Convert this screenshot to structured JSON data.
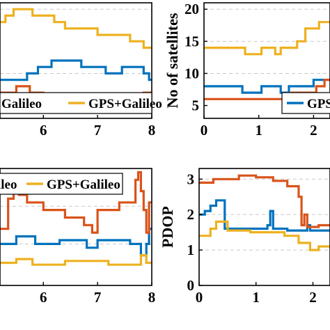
{
  "chart_data": [
    {
      "id": "top-left",
      "type": "line",
      "xlabel": "",
      "ylabel": "",
      "x_ticks": [
        "6",
        "7",
        "8"
      ],
      "legend": [
        {
          "label": "Galileo",
          "color": "#D95319"
        },
        {
          "label": "GPS+Galileo",
          "color": "#EDB120"
        }
      ],
      "series": [
        {
          "name": "GPS",
          "color": "#0072BD",
          "values": [
            [
              5.2,
              9
            ],
            [
              5.7,
              9
            ],
            [
              5.7,
              10
            ],
            [
              5.9,
              10
            ],
            [
              5.9,
              11
            ],
            [
              6.15,
              11
            ],
            [
              6.15,
              12
            ],
            [
              6.7,
              12
            ],
            [
              6.7,
              11
            ],
            [
              7.15,
              11
            ],
            [
              7.15,
              10
            ],
            [
              7.45,
              10
            ],
            [
              7.45,
              11
            ],
            [
              7.85,
              11
            ],
            [
              7.85,
              10
            ],
            [
              7.95,
              10
            ],
            [
              7.95,
              9
            ],
            [
              8,
              9
            ]
          ]
        },
        {
          "name": "Galileo",
          "color": "#D95319",
          "values": [
            [
              5.2,
              7
            ],
            [
              5.5,
              7
            ],
            [
              5.5,
              8
            ],
            [
              5.75,
              8
            ],
            [
              5.75,
              7
            ],
            [
              6.0,
              7
            ],
            [
              6.0,
              6
            ],
            [
              6.7,
              6
            ],
            [
              6.7,
              5
            ],
            [
              7.35,
              5
            ],
            [
              7.35,
              6
            ],
            [
              7.85,
              6
            ],
            [
              7.85,
              7
            ],
            [
              8,
              7
            ]
          ]
        },
        {
          "name": "GPS+Galileo",
          "color": "#EDB120",
          "values": [
            [
              5.2,
              18
            ],
            [
              5.3,
              18
            ],
            [
              5.3,
              19
            ],
            [
              5.45,
              19
            ],
            [
              5.45,
              20
            ],
            [
              5.8,
              20
            ],
            [
              5.8,
              19
            ],
            [
              6.2,
              19
            ],
            [
              6.2,
              18
            ],
            [
              6.4,
              18
            ],
            [
              6.4,
              17
            ],
            [
              7.0,
              17
            ],
            [
              7.0,
              16
            ],
            [
              7.6,
              16
            ],
            [
              7.6,
              15
            ],
            [
              7.85,
              15
            ],
            [
              7.85,
              14
            ],
            [
              8,
              14
            ]
          ]
        }
      ]
    },
    {
      "id": "top-right",
      "type": "line",
      "xlabel": "",
      "ylabel": "No of satellites",
      "x_ticks": [
        "0",
        "1",
        "2"
      ],
      "y_ticks": [
        "5",
        "10",
        "15",
        "20"
      ],
      "ylim": [
        3,
        21
      ],
      "legend": [
        {
          "label": "GPS",
          "color": "#0072BD"
        }
      ],
      "series": [
        {
          "name": "GPS",
          "color": "#0072BD",
          "values": [
            [
              0,
              8
            ],
            [
              0.7,
              8
            ],
            [
              0.7,
              7
            ],
            [
              1.05,
              7
            ],
            [
              1.05,
              8
            ],
            [
              1.4,
              8
            ],
            [
              1.4,
              7
            ],
            [
              1.55,
              7
            ],
            [
              1.55,
              8
            ],
            [
              2.0,
              8
            ],
            [
              2.0,
              9
            ],
            [
              2.3,
              9
            ]
          ]
        },
        {
          "name": "Galileo",
          "color": "#D95319",
          "values": [
            [
              0,
              6
            ],
            [
              1.6,
              6
            ],
            [
              1.6,
              7
            ],
            [
              2.05,
              7
            ],
            [
              2.05,
              8
            ],
            [
              2.2,
              8
            ],
            [
              2.2,
              9
            ],
            [
              2.3,
              9
            ]
          ]
        },
        {
          "name": "GPS+Galileo",
          "color": "#EDB120",
          "values": [
            [
              0,
              14
            ],
            [
              0.75,
              14
            ],
            [
              0.75,
              13
            ],
            [
              1.05,
              13
            ],
            [
              1.05,
              14
            ],
            [
              1.3,
              14
            ],
            [
              1.3,
              13
            ],
            [
              1.4,
              13
            ],
            [
              1.4,
              14
            ],
            [
              1.7,
              14
            ],
            [
              1.7,
              15
            ],
            [
              1.85,
              15
            ],
            [
              1.85,
              17
            ],
            [
              2.1,
              17
            ],
            [
              2.1,
              18
            ],
            [
              2.3,
              18
            ]
          ]
        }
      ]
    },
    {
      "id": "bottom-left",
      "type": "line",
      "xlabel": "",
      "ylabel": "",
      "x_ticks": [
        "6",
        "7",
        "8"
      ],
      "legend": [
        {
          "label": "ileo",
          "color": "#D95319"
        },
        {
          "label": "GPS+Galileo",
          "color": "#EDB120"
        }
      ],
      "series": [
        {
          "name": "GPS",
          "color": "#0072BD",
          "values": [
            [
              5.2,
              1.5
            ],
            [
              5.5,
              1.5
            ],
            [
              5.5,
              1.7
            ],
            [
              5.85,
              1.7
            ],
            [
              5.85,
              1.5
            ],
            [
              6.3,
              1.5
            ],
            [
              6.3,
              1.6
            ],
            [
              6.8,
              1.6
            ],
            [
              6.8,
              1.4
            ],
            [
              7.0,
              1.4
            ],
            [
              7.0,
              1.6
            ],
            [
              7.6,
              1.6
            ],
            [
              7.6,
              1.5
            ],
            [
              7.8,
              1.5
            ],
            [
              7.8,
              1.2
            ],
            [
              7.9,
              1.2
            ],
            [
              7.9,
              1.5
            ],
            [
              7.95,
              1.5
            ],
            [
              7.95,
              1.9
            ],
            [
              8,
              1.9
            ]
          ]
        },
        {
          "name": "Galileo",
          "color": "#D95319",
          "values": [
            [
              5.2,
              1.9
            ],
            [
              5.35,
              1.9
            ],
            [
              5.35,
              2.7
            ],
            [
              5.45,
              2.7
            ],
            [
              5.45,
              3.0
            ],
            [
              5.5,
              3.0
            ],
            [
              5.5,
              3.1
            ],
            [
              5.55,
              3.1
            ],
            [
              5.55,
              2.8
            ],
            [
              5.7,
              2.8
            ],
            [
              5.7,
              2.6
            ],
            [
              6.0,
              2.6
            ],
            [
              6.0,
              2.4
            ],
            [
              6.4,
              2.4
            ],
            [
              6.4,
              2.2
            ],
            [
              6.75,
              2.2
            ],
            [
              6.75,
              2.0
            ],
            [
              6.9,
              2.0
            ],
            [
              6.9,
              1.8
            ],
            [
              7.0,
              1.8
            ],
            [
              7.0,
              2.4
            ],
            [
              7.4,
              2.4
            ],
            [
              7.4,
              2.6
            ],
            [
              7.7,
              2.6
            ],
            [
              7.7,
              3.2
            ],
            [
              7.75,
              3.2
            ],
            [
              7.75,
              3.4
            ],
            [
              7.8,
              3.4
            ],
            [
              7.8,
              2.9
            ],
            [
              7.85,
              2.9
            ],
            [
              7.85,
              2.4
            ],
            [
              7.9,
              2.4
            ],
            [
              7.9,
              1.8
            ],
            [
              7.95,
              1.8
            ],
            [
              7.95,
              2.6
            ],
            [
              8,
              2.6
            ]
          ]
        },
        {
          "name": "GPS+Galileo",
          "color": "#EDB120",
          "values": [
            [
              5.2,
              1.0
            ],
            [
              5.5,
              1.0
            ],
            [
              5.5,
              1.1
            ],
            [
              5.8,
              1.1
            ],
            [
              5.8,
              0.95
            ],
            [
              6.4,
              0.95
            ],
            [
              6.4,
              1.05
            ],
            [
              7.2,
              1.05
            ],
            [
              7.2,
              0.95
            ],
            [
              7.8,
              0.95
            ],
            [
              7.8,
              1.2
            ],
            [
              7.9,
              1.2
            ],
            [
              7.9,
              1.0
            ],
            [
              8,
              1.0
            ]
          ]
        }
      ]
    },
    {
      "id": "bottom-right",
      "type": "line",
      "xlabel": "",
      "ylabel": "PDOP",
      "x_ticks": [
        "0",
        "1",
        "2"
      ],
      "y_ticks": [
        "0",
        "1",
        "2",
        "3"
      ],
      "ylim": [
        0,
        3.3
      ],
      "series": [
        {
          "name": "GPS",
          "color": "#0072BD",
          "values": [
            [
              0,
              2.0
            ],
            [
              0.1,
              2.0
            ],
            [
              0.1,
              2.1
            ],
            [
              0.2,
              2.1
            ],
            [
              0.2,
              2.25
            ],
            [
              0.3,
              2.25
            ],
            [
              0.3,
              2.4
            ],
            [
              0.45,
              2.4
            ],
            [
              0.45,
              1.6
            ],
            [
              1.2,
              1.6
            ],
            [
              1.2,
              1.7
            ],
            [
              1.25,
              1.7
            ],
            [
              1.25,
              2.1
            ],
            [
              1.3,
              2.1
            ],
            [
              1.3,
              1.6
            ],
            [
              1.55,
              1.6
            ],
            [
              1.55,
              1.55
            ],
            [
              1.9,
              1.55
            ],
            [
              1.9,
              1.7
            ],
            [
              1.95,
              1.7
            ],
            [
              1.95,
              1.55
            ],
            [
              2.3,
              1.55
            ]
          ]
        },
        {
          "name": "Galileo",
          "color": "#D95319",
          "values": [
            [
              0,
              2.9
            ],
            [
              0.25,
              2.9
            ],
            [
              0.25,
              3.0
            ],
            [
              0.7,
              3.0
            ],
            [
              0.7,
              3.1
            ],
            [
              1.0,
              3.1
            ],
            [
              1.0,
              3.05
            ],
            [
              1.3,
              3.05
            ],
            [
              1.3,
              2.95
            ],
            [
              1.55,
              2.95
            ],
            [
              1.55,
              2.8
            ],
            [
              1.75,
              2.8
            ],
            [
              1.75,
              2.5
            ],
            [
              1.8,
              2.5
            ],
            [
              1.8,
              1.7
            ],
            [
              1.85,
              1.7
            ],
            [
              1.85,
              2.0
            ],
            [
              1.9,
              2.0
            ],
            [
              1.9,
              1.65
            ],
            [
              2.1,
              1.65
            ],
            [
              2.1,
              1.7
            ],
            [
              2.3,
              1.7
            ]
          ]
        },
        {
          "name": "GPS+Galileo",
          "color": "#EDB120",
          "values": [
            [
              0,
              1.4
            ],
            [
              0.2,
              1.4
            ],
            [
              0.2,
              1.6
            ],
            [
              0.3,
              1.6
            ],
            [
              0.3,
              1.8
            ],
            [
              0.5,
              1.8
            ],
            [
              0.5,
              1.55
            ],
            [
              0.9,
              1.55
            ],
            [
              0.9,
              1.5
            ],
            [
              1.5,
              1.5
            ],
            [
              1.5,
              1.4
            ],
            [
              1.75,
              1.4
            ],
            [
              1.75,
              1.2
            ],
            [
              1.95,
              1.2
            ],
            [
              1.95,
              1.0
            ],
            [
              2.1,
              1.0
            ],
            [
              2.1,
              1.1
            ],
            [
              2.3,
              1.1
            ]
          ]
        }
      ]
    }
  ]
}
